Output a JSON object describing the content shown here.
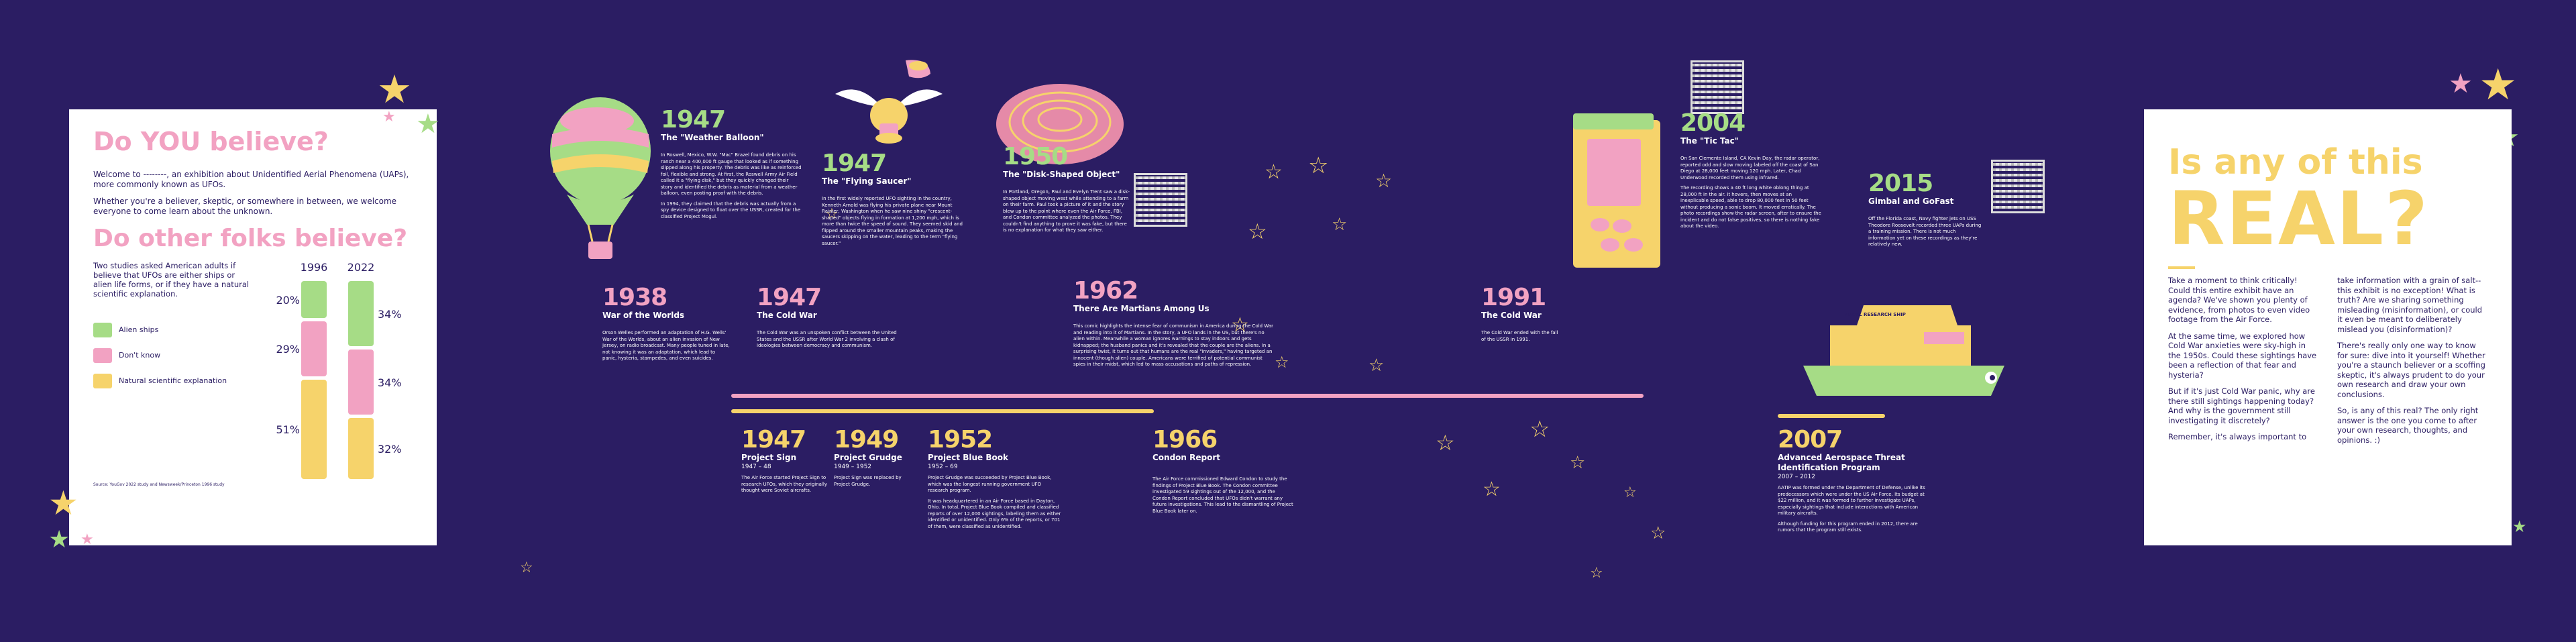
{
  "left": {
    "title1": "Do YOU believe?",
    "intro1": "Welcome to --------, an exhibition about Unidentified Aerial Phenomena (UAPs), more commonly known as UFOs.",
    "intro2": "Whether you're a believer, skeptic, or somewhere in between, we welcome everyone to come learn about the unknown.",
    "title2": "Do other folks believe?",
    "chart_desc": "Two studies asked American adults if believe that UFOs are either ships or alien life forms, or if they have a natural scientific explanation.",
    "legend": [
      {
        "label": "Alien ships",
        "color": "#a6dc86"
      },
      {
        "label": "Don't know",
        "color": "#f2a2c2"
      },
      {
        "label": "Natural scientific explanation",
        "color": "#f6d36b"
      }
    ],
    "source": "Source: YouGov 2022 study and Newsweek/Princeton 1996 study"
  },
  "chart_data": {
    "type": "bar",
    "stacked": true,
    "categories": [
      "1996",
      "2022"
    ],
    "series": [
      {
        "name": "Alien ships",
        "values": [
          20,
          34
        ],
        "labels": [
          "20%",
          "34%"
        ]
      },
      {
        "name": "Don't know",
        "values": [
          29,
          34
        ],
        "labels": [
          "29%",
          "34%"
        ]
      },
      {
        "name": "Natural scientific explanation",
        "values": [
          51,
          32
        ],
        "labels": [
          "51%",
          "32%"
        ]
      }
    ]
  },
  "events": {
    "e1947a": {
      "year": "1947",
      "title": "The \"Weather Balloon\"",
      "body1": "In Roswell, Mexico, W.W. \"Mac\" Brazel found debris on his ranch near a 400,000 ft gauge that looked as if something slipped along his property. The debris was like as reinforced foil, flexible and strong. At first, the Roswell Army Air Field called it a \"flying disk,\" but they quickly changed their story and identified the debris as material from a weather balloon, even posting proof with the debris.",
      "body2": "In 1994, they claimed that the debris was actually from a spy device designed to float over the USSR, created for the classified Project Mogul."
    },
    "e1947b": {
      "year": "1947",
      "title": "The \"Flying Saucer\"",
      "body1": "In the first widely reported UFO sighting in the country, Kenneth Arnold was flying his private plane near Mount Rainier, Washington when he saw nine shiny \"crescent-shaped\" objects flying in formation at 1,200 mph, which is more than twice the speed of sound. They seemed skid and flipped around the smaller mountain peaks, making the saucers skipping on the water, leading to the term \"flying saucer.\""
    },
    "e1950": {
      "year": "1950",
      "title": "The \"Disk-Shaped Object\"",
      "body1": "In Portland, Oregon, Paul and Evelyn Trent saw a disk-shaped object moving west while attending to a farm on their farm. Paul took a picture of it and the story blew up to the point where even the Air Force, FBI, and Condon committee analyzed the photos. They couldn't find anything to prove it was fake, but there is no explanation for what they saw either."
    },
    "e2004": {
      "year": "2004",
      "title": "The \"Tic Tac\"",
      "body1": "On San Clemente Island, CA Kevin Day, the radar operator, reported odd and slow moving labeled off the coast of San Diego at 28,000 feet moving 120 mph. Later, Chad Underwood recorded them using infrared.",
      "body2": "The recording shows a 40 ft long white oblong thing at 28,000 ft in the air. It hovers, then moves at an inexplicable speed, able to drop 80,000 feet in 50 feet without producing a sonic boom. It moved erratically. The photo recordings show the radar screen, after to ensure the incident and do not false positives, so there is nothing fake about the video."
    },
    "e2015": {
      "year": "2015",
      "title": "Gimbal and GoFast",
      "body1": "Off the Florida coast, Navy fighter jets on USS Theodore Roosevelt recorded three UAPs during a training mission. There is not much information yet on these recordings as they're relatively new."
    },
    "e1938": {
      "year": "1938",
      "title": "War of the Worlds",
      "body1": "Orson Welles performed an adaptation of H.G. Wells' War of the Worlds, about an alien invasion of New Jersey, on radio broadcast. Many people tuned in late, not knowing it was an adaptation, which lead to panic, hysteria, stampedes, and even suicides."
    },
    "e1947c": {
      "year": "1947",
      "title": "The Cold War",
      "body1": "The Cold War was an unspoken conflict between the United States and the USSR after World War 2 involving a clash of ideologies between democracy and communism."
    },
    "e1962": {
      "year": "1962",
      "title": "There Are Martians Among Us",
      "body1": "This comic highlights the intense fear of communism in America during the Cold War and reading into it of Martians. In the story, a UFO lands in the US, but there's no alien within. Meanwhile a woman ignores warnings to stay indoors and gets kidnapped; the husband panics and it's revealed that the couple are the aliens. In a surprising twist, it turns out that humans are the real \"invaders,\" having targeted an innocent (though alien) couple. Americans were terrified of potential communist spies in their midst, which led to mass accusations and paths of repression."
    },
    "e1991": {
      "year": "1991",
      "title": "The Cold War",
      "body1": "The Cold War ended with the fall of the USSR in 1991."
    },
    "e1947d": {
      "year": "1947",
      "title": "Project Sign",
      "sub": "1947 – 48",
      "body1": "The Air Force started Project Sign to research UFOs, which they originally thought were Soviet aircrafts."
    },
    "e1949": {
      "year": "1949",
      "title": "Project Grudge",
      "sub": "1949 – 1952",
      "body1": "Project Sign was replaced by Project Grudge."
    },
    "e1952": {
      "year": "1952",
      "title": "Project Blue Book",
      "sub": "1952 – 69",
      "body1": "Project Grudge was succeeded by Project Blue Book, which was the longest running government UFO research program.",
      "body2": "It was headquartered in an Air Force based in Dayton, Ohio. In total, Project Blue Book compiled and classified reports of over 12,000 sightings, labeling them as either identified or unidentified. Only 6% of the reports, or 701 of them, were classified as unidentified."
    },
    "e1966": {
      "year": "1966",
      "title": "Condon Report",
      "body1": "The Air Force commissioned Edward Condon to study the findings of Project Blue Book. The Condon committee investigated 59 sightings out of the 12,000, and the Condon Report concluded that UFOs didn't warrant any future investigations. This lead to the dismantling of Project Blue Book later on."
    },
    "e2007": {
      "year": "2007",
      "title": "Advanced Aerospace Threat Identification Program",
      "sub": "2007 – 2012",
      "body1": "AATIP was formed under the Department of Defense, unlike its predecessors which were under the US Air Force. Its budget at $22 million, and it was formed to further investigate UAPs, especially sightings that include interactions with American military aircrafts.",
      "body2": "Although funding for this program ended in 2012, there are rumors that the program still exists."
    }
  },
  "right": {
    "title_small": "Is any of this",
    "title_big": "REAL?",
    "col1": [
      "Take a moment to think critically! Could this entire exhibit have an agenda?  We've shown you plenty of evidence, from photos to even video footage from the Air Force.",
      "At the same time, we explored how Cold War anxieties were sky-high in the 1950s. Could these sightings have been a reflection of that fear and hysteria?",
      "But if it's just Cold War panic, why are there still sightings happening today? And why is the government still investigating it discretely?",
      "Remember, it's always important to"
    ],
    "col2": [
      "take information with a grain of salt--this exhibit is no exception! What is truth? Are we sharing something misleading (misinformation), or could it even be meant to deliberately mislead you (disinformation)?",
      "There's really only one way to know for sure: dive into it yourself! Whether you're a staunch believer or a scoffing skeptic, it's always prudent to do your own research and draw your own conclusions.",
      "So, is any of this real? The only right answer is the one you come to after your own research, thoughts, and opinions. :)"
    ]
  },
  "ship_label": "NAVAL RESEARCH SHIP",
  "colors": {
    "bg": "#2b1d63",
    "pink": "#f2a2c2",
    "yellow": "#f6d36b",
    "green": "#a6dc86"
  }
}
